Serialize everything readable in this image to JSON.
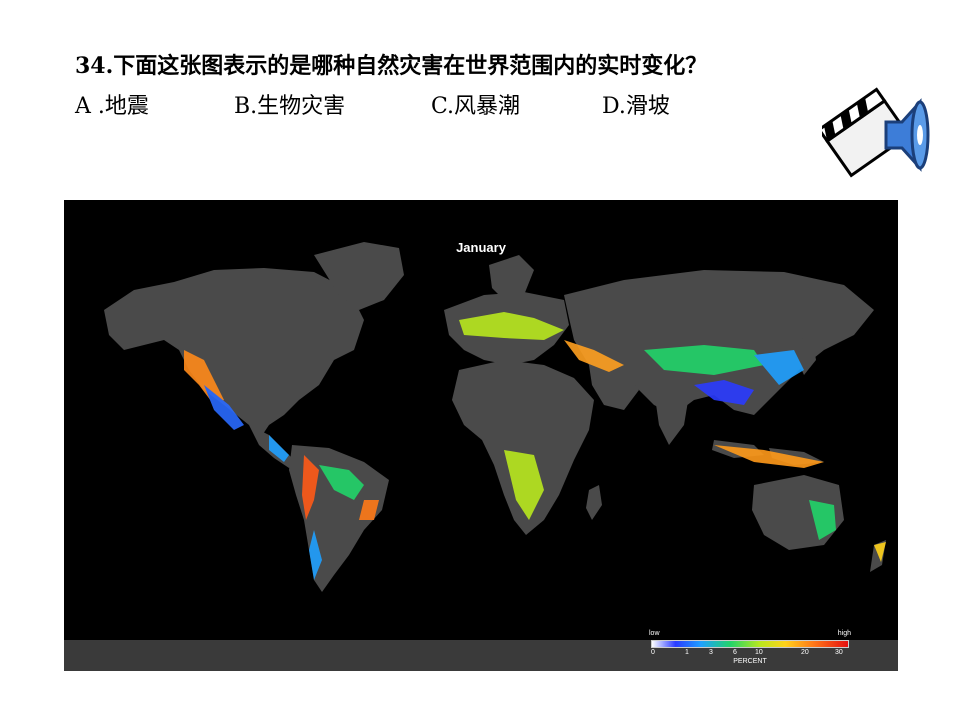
{
  "question": {
    "text": "34.下面这张图表示的是哪种自然灾害在世界范围内的实时变化？"
  },
  "options": [
    {
      "label": "A .地震"
    },
    {
      "label": "B.生物灾害"
    },
    {
      "label": "C.风暴潮"
    },
    {
      "label": "D.滑坡"
    }
  ],
  "media_icon": {
    "name": "clapperboard-speaker-icon"
  },
  "map": {
    "title": "January",
    "legend": {
      "low_label": "low",
      "high_label": "high",
      "ticks": [
        "0",
        "1",
        "3",
        "6",
        "10",
        "20",
        "30"
      ],
      "unit": "PERCENT"
    }
  },
  "colors": {
    "background": "#ffffff",
    "map_background": "#000000",
    "land": "#4a4a4a"
  }
}
